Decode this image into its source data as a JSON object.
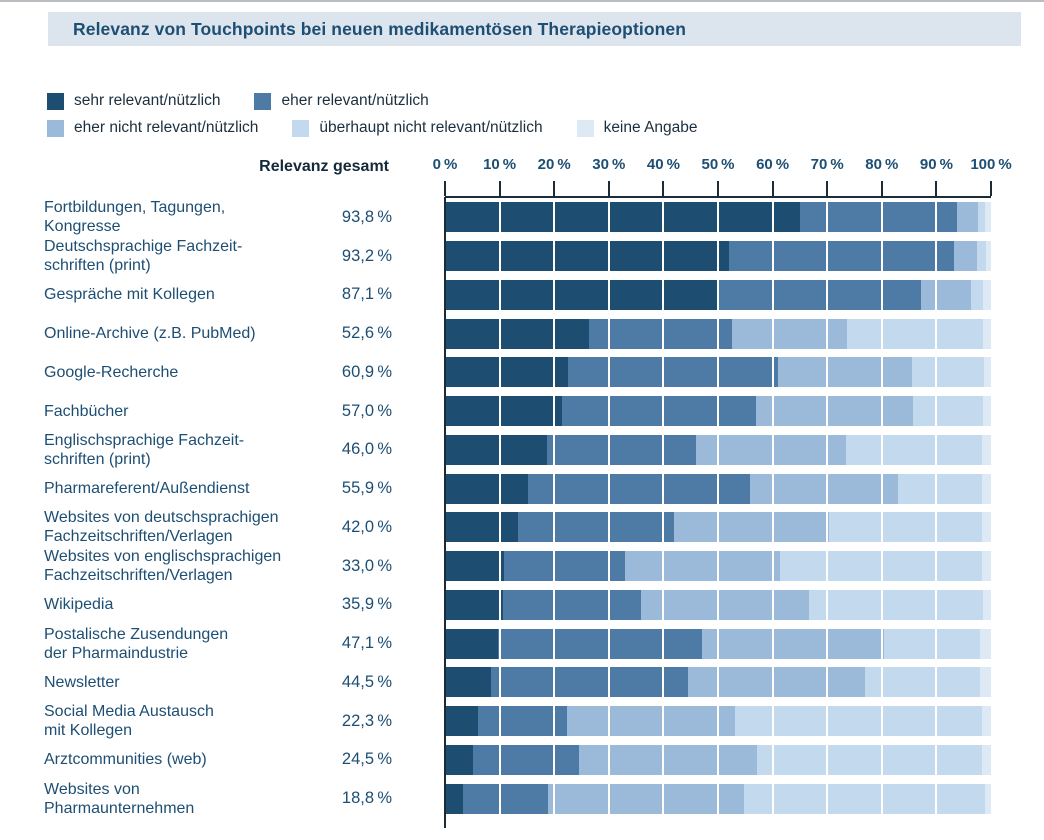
{
  "title": "Relevanz von Touchpoints bei neuen medikamentösen Therapieoptionen",
  "axis": {
    "header": "Relevanz gesamt",
    "tick_labels": [
      "0 %",
      "10 %",
      "20 %",
      "30 %",
      "40 %",
      "50 %",
      "60 %",
      "70 %",
      "80 %",
      "90 %",
      "100 %"
    ]
  },
  "colors": {
    "axis_line": "#1c2b36",
    "title_band_bg": "#dce4ed",
    "title_text": "#1d4e73",
    "label_text": "#1d4e73"
  },
  "chart_data": {
    "type": "bar",
    "stacked": true,
    "orientation": "horizontal",
    "unit": "%",
    "xlim": [
      0,
      100
    ],
    "grid": "white vertical lines every 10%",
    "legend_position": "top",
    "categories": [
      "Fortbildungen, Tagungen,\nKongresse",
      "Deutschsprachige Fachzeit-\nschriften (print)",
      "Gespräche mit Kollegen",
      "Online-Archive (z.B. PubMed)",
      "Google-Recherche",
      "Fachbücher",
      "Englischsprachige Fachzeit-\nschriften (print)",
      "Pharmareferent/Außendienst",
      "Websites von deutschsprachigen\nFachzeitschriften/Verlagen",
      "Websites von englischsprachigen\nFachzeitschriften/Verlagen",
      "Wikipedia",
      "Postalische Zusendungen\nder Pharmaindustrie",
      "Newsletter",
      "Social Media Austausch\nmit Kollegen",
      "Arztcommunities (web)",
      "Websites von\nPharmaunternehmen"
    ],
    "totals": [
      93.8,
      93.2,
      87.1,
      52.6,
      60.9,
      57.0,
      46.0,
      55.9,
      42.0,
      33.0,
      35.9,
      47.1,
      44.5,
      22.3,
      24.5,
      18.8
    ],
    "totals_display": [
      "93,8 %",
      "93,2 %",
      "87,1 %",
      "52,6 %",
      "60,9 %",
      "57,0 %",
      "46,0 %",
      "55,9 %",
      "42,0 %",
      "33,0 %",
      "35,9 %",
      "47,1 %",
      "44,5 %",
      "22,3 %",
      "24,5 %",
      "18,8 %"
    ],
    "series": [
      {
        "name": "sehr relevant/nützlich",
        "color": "#1d4d70",
        "values": [
          65.0,
          52.0,
          50.0,
          26.3,
          22.6,
          21.5,
          18.7,
          15.2,
          13.4,
          10.8,
          10.6,
          9.7,
          8.5,
          6.1,
          5.1,
          3.3
        ]
      },
      {
        "name": "eher relevant/nützlich",
        "color": "#4d7ba6",
        "values": [
          28.8,
          41.2,
          37.1,
          26.3,
          38.3,
          35.5,
          27.3,
          40.7,
          28.6,
          22.2,
          25.3,
          37.4,
          36.0,
          16.2,
          19.4,
          15.5
        ]
      },
      {
        "name": "eher nicht relevant/nützlich",
        "color": "#9bbad9",
        "values": [
          3.9,
          4.3,
          9.2,
          21.0,
          24.6,
          28.7,
          27.5,
          27.0,
          28.3,
          28.3,
          30.7,
          33.3,
          32.5,
          30.9,
          32.6,
          36.0
        ]
      },
      {
        "name": "überhaupt nicht relevant/nützlich",
        "color": "#c3daee",
        "values": [
          1.2,
          1.6,
          2.2,
          24.9,
          13.3,
          12.8,
          24.9,
          15.5,
          28.0,
          37.0,
          32.0,
          17.5,
          21.0,
          45.2,
          41.3,
          44.1
        ]
      },
      {
        "name": "keine Angabe",
        "color": "#ddeaf6",
        "values": [
          1.1,
          0.9,
          1.5,
          1.5,
          1.2,
          1.5,
          1.6,
          1.6,
          1.7,
          1.7,
          1.4,
          2.1,
          2.0,
          1.6,
          1.6,
          1.1
        ]
      }
    ],
    "legend_rows": [
      [
        0,
        1
      ],
      [
        2,
        3,
        4
      ]
    ]
  }
}
